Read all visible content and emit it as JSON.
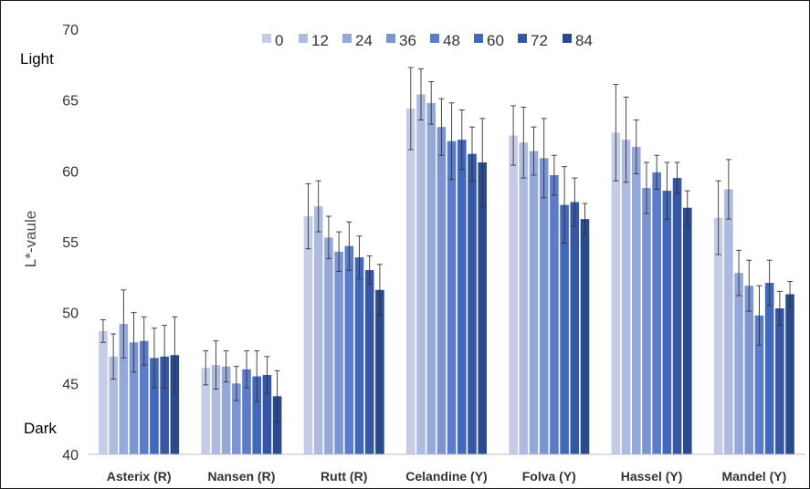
{
  "chart_data": {
    "type": "bar",
    "title": "",
    "xlabel": "",
    "ylabel": "L*-vaule",
    "ylim": [
      40,
      70
    ],
    "yticks": [
      40,
      45,
      50,
      55,
      60,
      65,
      70
    ],
    "annotations": {
      "top": "Light",
      "bottom": "Dark"
    },
    "legend_position": "top",
    "grid": false,
    "categories": [
      "Asterix (R)",
      "Nansen (R)",
      "Rutt (R)",
      "Celandine (Y)",
      "Folva (Y)",
      "Hassel (Y)",
      "Mandel (Y)"
    ],
    "series": [
      {
        "name": "0",
        "color": "#c5cde6",
        "values": [
          48.7,
          46.1,
          56.8,
          64.4,
          62.5,
          62.7,
          56.7
        ],
        "errors": [
          0.8,
          1.2,
          2.3,
          2.9,
          2.1,
          3.4,
          2.6
        ]
      },
      {
        "name": "12",
        "color": "#adbbe0",
        "values": [
          46.9,
          46.3,
          57.5,
          65.4,
          62.0,
          62.2,
          58.7
        ],
        "errors": [
          1.6,
          1.7,
          1.8,
          1.8,
          2.5,
          3.0,
          2.1
        ]
      },
      {
        "name": "24",
        "color": "#95a8da",
        "values": [
          49.2,
          46.2,
          55.3,
          64.8,
          61.4,
          61.7,
          52.8
        ],
        "errors": [
          2.4,
          1.1,
          1.5,
          1.5,
          1.7,
          1.9,
          1.6
        ]
      },
      {
        "name": "36",
        "color": "#7b94d2",
        "values": [
          47.9,
          45.0,
          54.3,
          63.1,
          60.9,
          58.8,
          51.9
        ],
        "errors": [
          2.1,
          1.2,
          1.4,
          2.0,
          2.8,
          1.8,
          1.8
        ]
      },
      {
        "name": "48",
        "color": "#5b7cc9",
        "values": [
          48.0,
          46.0,
          54.7,
          62.1,
          59.7,
          59.9,
          49.8
        ],
        "errors": [
          1.7,
          1.3,
          1.7,
          2.7,
          1.4,
          1.2,
          2.1
        ]
      },
      {
        "name": "60",
        "color": "#4268bb",
        "values": [
          46.8,
          45.5,
          53.9,
          62.2,
          57.6,
          58.6,
          52.1
        ],
        "errors": [
          2.1,
          1.8,
          1.5,
          2.1,
          2.7,
          2.0,
          1.6
        ]
      },
      {
        "name": "72",
        "color": "#3557a6",
        "values": [
          46.9,
          45.6,
          53.0,
          61.2,
          57.8,
          59.5,
          50.3
        ],
        "errors": [
          2.2,
          1.3,
          1.0,
          1.9,
          1.7,
          1.1,
          1.2
        ]
      },
      {
        "name": "84",
        "color": "#2a4a8e",
        "values": [
          47.0,
          44.1,
          51.6,
          60.6,
          56.6,
          57.4,
          51.3
        ],
        "errors": [
          2.7,
          1.8,
          1.8,
          3.1,
          1.1,
          1.2,
          0.9
        ]
      }
    ]
  }
}
